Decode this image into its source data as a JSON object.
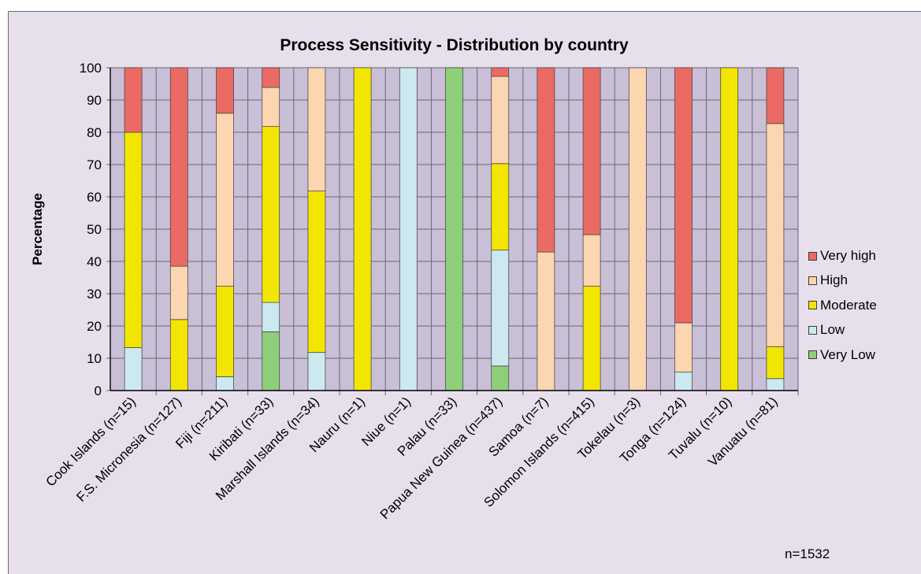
{
  "chart_data": {
    "type": "bar",
    "stacked": true,
    "title": "Process Sensitivity - Distribution by country",
    "ylabel": "Percentage",
    "xlabel": "",
    "ylim": [
      0,
      100
    ],
    "yticks": [
      0,
      10,
      20,
      30,
      40,
      50,
      60,
      70,
      80,
      90,
      100
    ],
    "grid": true,
    "legend_position": "right",
    "categories": [
      "Cook Islands (n=15)",
      "F.S. Micronesia (n=127)",
      "Fiji (n=211)",
      "Kiribati (n=33)",
      "Marshall Islands (n=34)",
      "Nauru (n=1)",
      "Niue (n=1)",
      "Palau (n=33)",
      "Papua New Guinea (n=437)",
      "Samoa (n=7)",
      "Solomon Islands (n=415)",
      "Tokelau (n=3)",
      "Tonga (n=124)",
      "Tuvalu (n=10)",
      "Vanuatu (n=81)"
    ],
    "series": [
      {
        "name": "Very Low",
        "color": "#8fcf7a",
        "values": [
          0,
          0,
          0,
          18.2,
          0,
          0,
          0,
          100,
          7.6,
          0,
          0,
          0,
          0,
          0,
          0
        ]
      },
      {
        "name": "Low",
        "color": "#cde9f0",
        "values": [
          13.3,
          0,
          4.3,
          9.1,
          11.8,
          0,
          100,
          0,
          35.9,
          0,
          0,
          0,
          5.7,
          0,
          3.7
        ]
      },
      {
        "name": "Moderate",
        "color": "#f2e600",
        "values": [
          66.7,
          22.0,
          28.0,
          54.5,
          50.0,
          100,
          0,
          0,
          26.8,
          0,
          32.3,
          0,
          0,
          100,
          9.9
        ]
      },
      {
        "name": "High",
        "color": "#fcd6b0",
        "values": [
          0,
          16.5,
          53.6,
          12.1,
          38.2,
          0,
          0,
          0,
          27.0,
          42.9,
          16.0,
          100,
          15.3,
          0,
          69.1
        ]
      },
      {
        "name": "Very high",
        "color": "#eb6a64",
        "values": [
          20.0,
          61.5,
          14.1,
          6.1,
          0,
          0,
          0,
          0,
          2.7,
          57.1,
          51.7,
          0,
          79.0,
          0,
          17.3
        ]
      }
    ],
    "legend_order": [
      "Very high",
      "High",
      "Moderate",
      "Low",
      "Very Low"
    ],
    "colors": {
      "plot_background": "#c9bfd7",
      "frame_background": "#e7dfeb",
      "gridline": "#6a6a6a"
    }
  },
  "legend": {
    "items": [
      {
        "label": "Very high",
        "color": "#eb6a64"
      },
      {
        "label": "High",
        "color": "#fcd6b0"
      },
      {
        "label": "Moderate",
        "color": "#f2e600"
      },
      {
        "label": "Low",
        "color": "#cde9f0"
      },
      {
        "label": "Very Low",
        "color": "#8fcf7a"
      }
    ]
  },
  "note": "n=1532"
}
